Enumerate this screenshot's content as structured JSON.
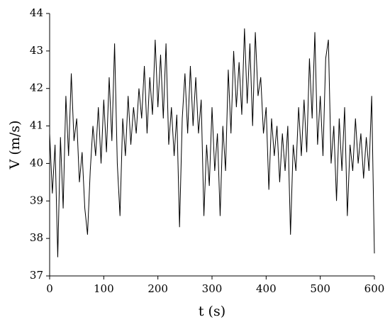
{
  "chart_data": {
    "type": "line",
    "x_label": "t (s)",
    "y_label": "V (m/s)",
    "x": [
      0,
      5,
      10,
      15,
      20,
      25,
      30,
      35,
      40,
      45,
      50,
      55,
      60,
      65,
      70,
      75,
      80,
      85,
      90,
      95,
      100,
      105,
      110,
      115,
      120,
      125,
      130,
      135,
      140,
      145,
      150,
      155,
      160,
      165,
      170,
      175,
      180,
      185,
      190,
      195,
      200,
      205,
      210,
      215,
      220,
      225,
      230,
      235,
      240,
      245,
      250,
      255,
      260,
      265,
      270,
      275,
      280,
      285,
      290,
      295,
      300,
      305,
      310,
      315,
      320,
      325,
      330,
      335,
      340,
      345,
      350,
      355,
      360,
      365,
      370,
      375,
      380,
      385,
      390,
      395,
      400,
      405,
      410,
      415,
      420,
      425,
      430,
      435,
      440,
      445,
      450,
      455,
      460,
      465,
      470,
      475,
      480,
      485,
      490,
      495,
      500,
      505,
      510,
      515,
      520,
      525,
      530,
      535,
      540,
      545,
      550,
      555,
      560,
      565,
      570,
      575,
      580,
      585,
      590,
      595,
      600
    ],
    "series": [
      {
        "color": "#000000",
        "values": [
          40.8,
          39.2,
          40.5,
          37.5,
          40.7,
          38.8,
          41.8,
          40.2,
          42.4,
          40.6,
          41.2,
          39.5,
          40.3,
          38.8,
          38.1,
          39.8,
          41.0,
          40.2,
          41.5,
          40.0,
          41.7,
          40.3,
          42.3,
          40.6,
          43.2,
          40.0,
          38.6,
          41.2,
          40.2,
          41.8,
          40.5,
          41.5,
          40.8,
          42.0,
          41.2,
          42.6,
          40.8,
          42.3,
          41.3,
          43.3,
          41.5,
          42.9,
          41.2,
          43.2,
          40.5,
          41.5,
          40.2,
          41.3,
          38.3,
          41.2,
          42.4,
          40.8,
          42.6,
          41.0,
          42.3,
          40.8,
          41.7,
          38.6,
          40.5,
          39.4,
          41.5,
          39.8,
          40.8,
          38.6,
          41.0,
          39.8,
          42.5,
          40.8,
          43.0,
          41.5,
          42.7,
          41.3,
          43.6,
          41.6,
          43.2,
          41.0,
          43.5,
          41.8,
          42.3,
          40.8,
          41.5,
          39.3,
          41.2,
          40.2,
          41.0,
          39.5,
          40.8,
          39.8,
          41.0,
          38.1,
          40.5,
          39.8,
          41.5,
          40.2,
          41.7,
          40.3,
          42.8,
          41.2,
          43.5,
          40.5,
          41.8,
          40.2,
          42.8,
          43.3,
          40.0,
          41.0,
          39.0,
          41.2,
          39.8,
          41.5,
          38.6,
          40.5,
          39.8,
          41.2,
          40.0,
          40.8,
          39.6,
          40.7,
          39.8,
          41.8,
          37.6
        ]
      }
    ],
    "xlim": [
      0,
      600
    ],
    "xticks": [
      0,
      100,
      200,
      300,
      400,
      500,
      600
    ],
    "ylim": [
      37,
      44
    ],
    "yticks": [
      37,
      38,
      39,
      40,
      41,
      42,
      43,
      44
    ],
    "grid": false
  }
}
